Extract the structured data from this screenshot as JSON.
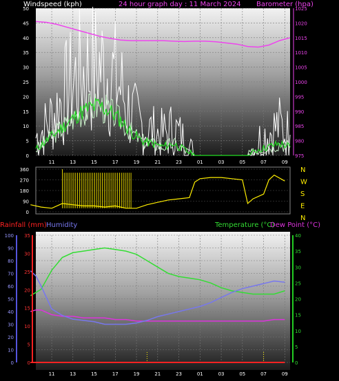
{
  "header": {
    "left_title": "Windspeed (kph)",
    "center_title": "24 hour graph day : 11 March 2024",
    "right_title": "Barometer (hpa)"
  },
  "bottom_header": {
    "rainfall_label": "Rainfall (mm)",
    "humidity_label": "Humidity",
    "temperature_label": "Temperature (°C)",
    "dewpoint_label": "Dew Point (°C)"
  },
  "colors": {
    "wind_avg": "#22dd22",
    "wind_gust": "#ffffff",
    "wind_light": "#c8f0c8",
    "barometer": "#ee44ee",
    "direction": "#ffee00",
    "temperature": "#33dd33",
    "dewpoint": "#dd33dd",
    "humidity": "#7777ee",
    "rainfall": "#ff2222",
    "humidity_axis": "#5555dd",
    "temperature_axis": "#22cc22"
  },
  "time_ticks": [
    "11",
    "13",
    "15",
    "17",
    "19",
    "21",
    "23",
    "01",
    "03",
    "05",
    "07",
    "09"
  ],
  "chart_data": [
    {
      "type": "line",
      "name": "windspeed-barometer",
      "x_hours": [
        9.5,
        10.5,
        11.5,
        12.5,
        13.5,
        14.5,
        15.5,
        16.5,
        17.5,
        18.5,
        19.5,
        20.5,
        21.5,
        22.5,
        23.5,
        24.5,
        25.5,
        26.5,
        27.5,
        28.5,
        29.5,
        30.5,
        31.5,
        32.5,
        33.5
      ],
      "ylabel_left": "Windspeed (kph)",
      "ylim_left": [
        0,
        50
      ],
      "yticks_left": [
        0,
        5,
        10,
        15,
        20,
        25,
        30,
        35,
        40,
        45,
        50
      ],
      "ylabel_right": "Barometer (hpa)",
      "ylim_right": [
        975,
        1025
      ],
      "yticks_right": [
        975,
        980,
        985,
        990,
        995,
        1000,
        1005,
        1010,
        1015,
        1020,
        1025
      ],
      "series": [
        {
          "key": "gust",
          "values": [
            6,
            10,
            16,
            22,
            27,
            29,
            30,
            28,
            23,
            14,
            10,
            8,
            7,
            9,
            5,
            0,
            0,
            0,
            0,
            0,
            0,
            5,
            8,
            10,
            7
          ]
        },
        {
          "key": "avg",
          "values": [
            2,
            5,
            8,
            11,
            14,
            16,
            17,
            15,
            12,
            8,
            5,
            4,
            3,
            4,
            2,
            0,
            0,
            0,
            0,
            0,
            0,
            2,
            3,
            4,
            3
          ]
        },
        {
          "key": "barometer",
          "values": [
            1020.5,
            1020.2,
            1019.5,
            1018.5,
            1017.5,
            1016.5,
            1015.5,
            1014.8,
            1014.2,
            1014.0,
            1014.0,
            1014.0,
            1014.0,
            1013.8,
            1013.7,
            1013.8,
            1013.8,
            1013.6,
            1013.2,
            1012.8,
            1012.0,
            1011.8,
            1012.5,
            1014.0,
            1015.0
          ]
        }
      ]
    },
    {
      "type": "line",
      "name": "wind-direction",
      "x_hours": [
        9.0,
        10.0,
        11.0,
        12.0,
        13.0,
        14.0,
        15.0,
        16.0,
        17.0,
        18.0,
        19.0,
        20.0,
        21.0,
        22.0,
        23.0,
        24.0,
        24.5,
        25.0,
        26.0,
        27.0,
        28.0,
        29.0,
        29.5,
        30.0,
        31.0,
        31.5,
        32.0,
        33.0
      ],
      "ylim": [
        0,
        360
      ],
      "yticks": [
        0,
        90,
        180,
        270,
        360
      ],
      "compass_labels": [
        "N",
        "W",
        "S",
        "E",
        "N"
      ],
      "series": [
        {
          "key": "direction",
          "values": [
            60,
            40,
            30,
            70,
            60,
            50,
            50,
            40,
            50,
            30,
            30,
            60,
            80,
            100,
            110,
            120,
            250,
            280,
            290,
            290,
            280,
            270,
            70,
            110,
            150,
            270,
            310,
            260
          ]
        }
      ],
      "erratic_range_hours": [
        12.0,
        18.5
      ]
    },
    {
      "type": "line",
      "name": "temperature-humidity-rainfall",
      "x_hours": [
        9.0,
        9.5,
        10.0,
        11.0,
        12.0,
        13.0,
        14.0,
        15.0,
        16.0,
        17.0,
        18.0,
        19.0,
        20.0,
        21.0,
        22.0,
        23.0,
        24.0,
        25.0,
        26.0,
        27.0,
        28.0,
        29.0,
        30.0,
        31.0,
        32.0,
        33.0
      ],
      "ylim_left": [
        0,
        100
      ],
      "yticks_left": [
        0,
        10,
        20,
        30,
        40,
        50,
        60,
        70,
        80,
        90,
        100
      ],
      "rainfall_ylim": [
        0,
        35
      ],
      "rainfall_yticks": [
        0,
        5,
        10,
        15,
        20,
        25,
        30,
        35
      ],
      "ylim_right": [
        0,
        40
      ],
      "yticks_right": [
        0,
        5,
        10,
        15,
        20,
        25,
        30,
        35,
        40
      ],
      "series": [
        {
          "key": "temperature",
          "values": [
            21,
            22,
            23,
            29,
            33,
            34.5,
            35,
            35.5,
            36,
            35.5,
            35,
            34,
            32,
            30,
            28,
            27,
            26.5,
            26,
            25,
            23.5,
            22.5,
            22,
            21.5,
            21.5,
            21.5,
            22.5
          ]
        },
        {
          "key": "dewpoint",
          "values": [
            16,
            16.5,
            16.5,
            15,
            14.5,
            14.5,
            14,
            14,
            14,
            13.5,
            13.5,
            13,
            13,
            13,
            13,
            13,
            13,
            13,
            13,
            13,
            13,
            13,
            13,
            13,
            13.5,
            13.5
          ]
        },
        {
          "key": "humidity",
          "values": [
            72,
            68,
            60,
            42,
            37,
            34,
            33,
            32,
            30,
            30,
            30,
            31,
            33,
            36,
            38,
            40,
            42,
            44,
            47,
            51,
            55,
            58,
            60,
            62,
            64,
            63
          ]
        },
        {
          "key": "rainfall",
          "values": [
            0,
            0,
            0,
            0,
            0,
            0,
            0,
            0,
            0,
            0,
            0,
            0,
            0,
            0,
            0,
            0,
            0,
            0,
            0,
            0,
            0,
            0,
            0,
            0,
            0,
            0
          ]
        }
      ]
    }
  ]
}
